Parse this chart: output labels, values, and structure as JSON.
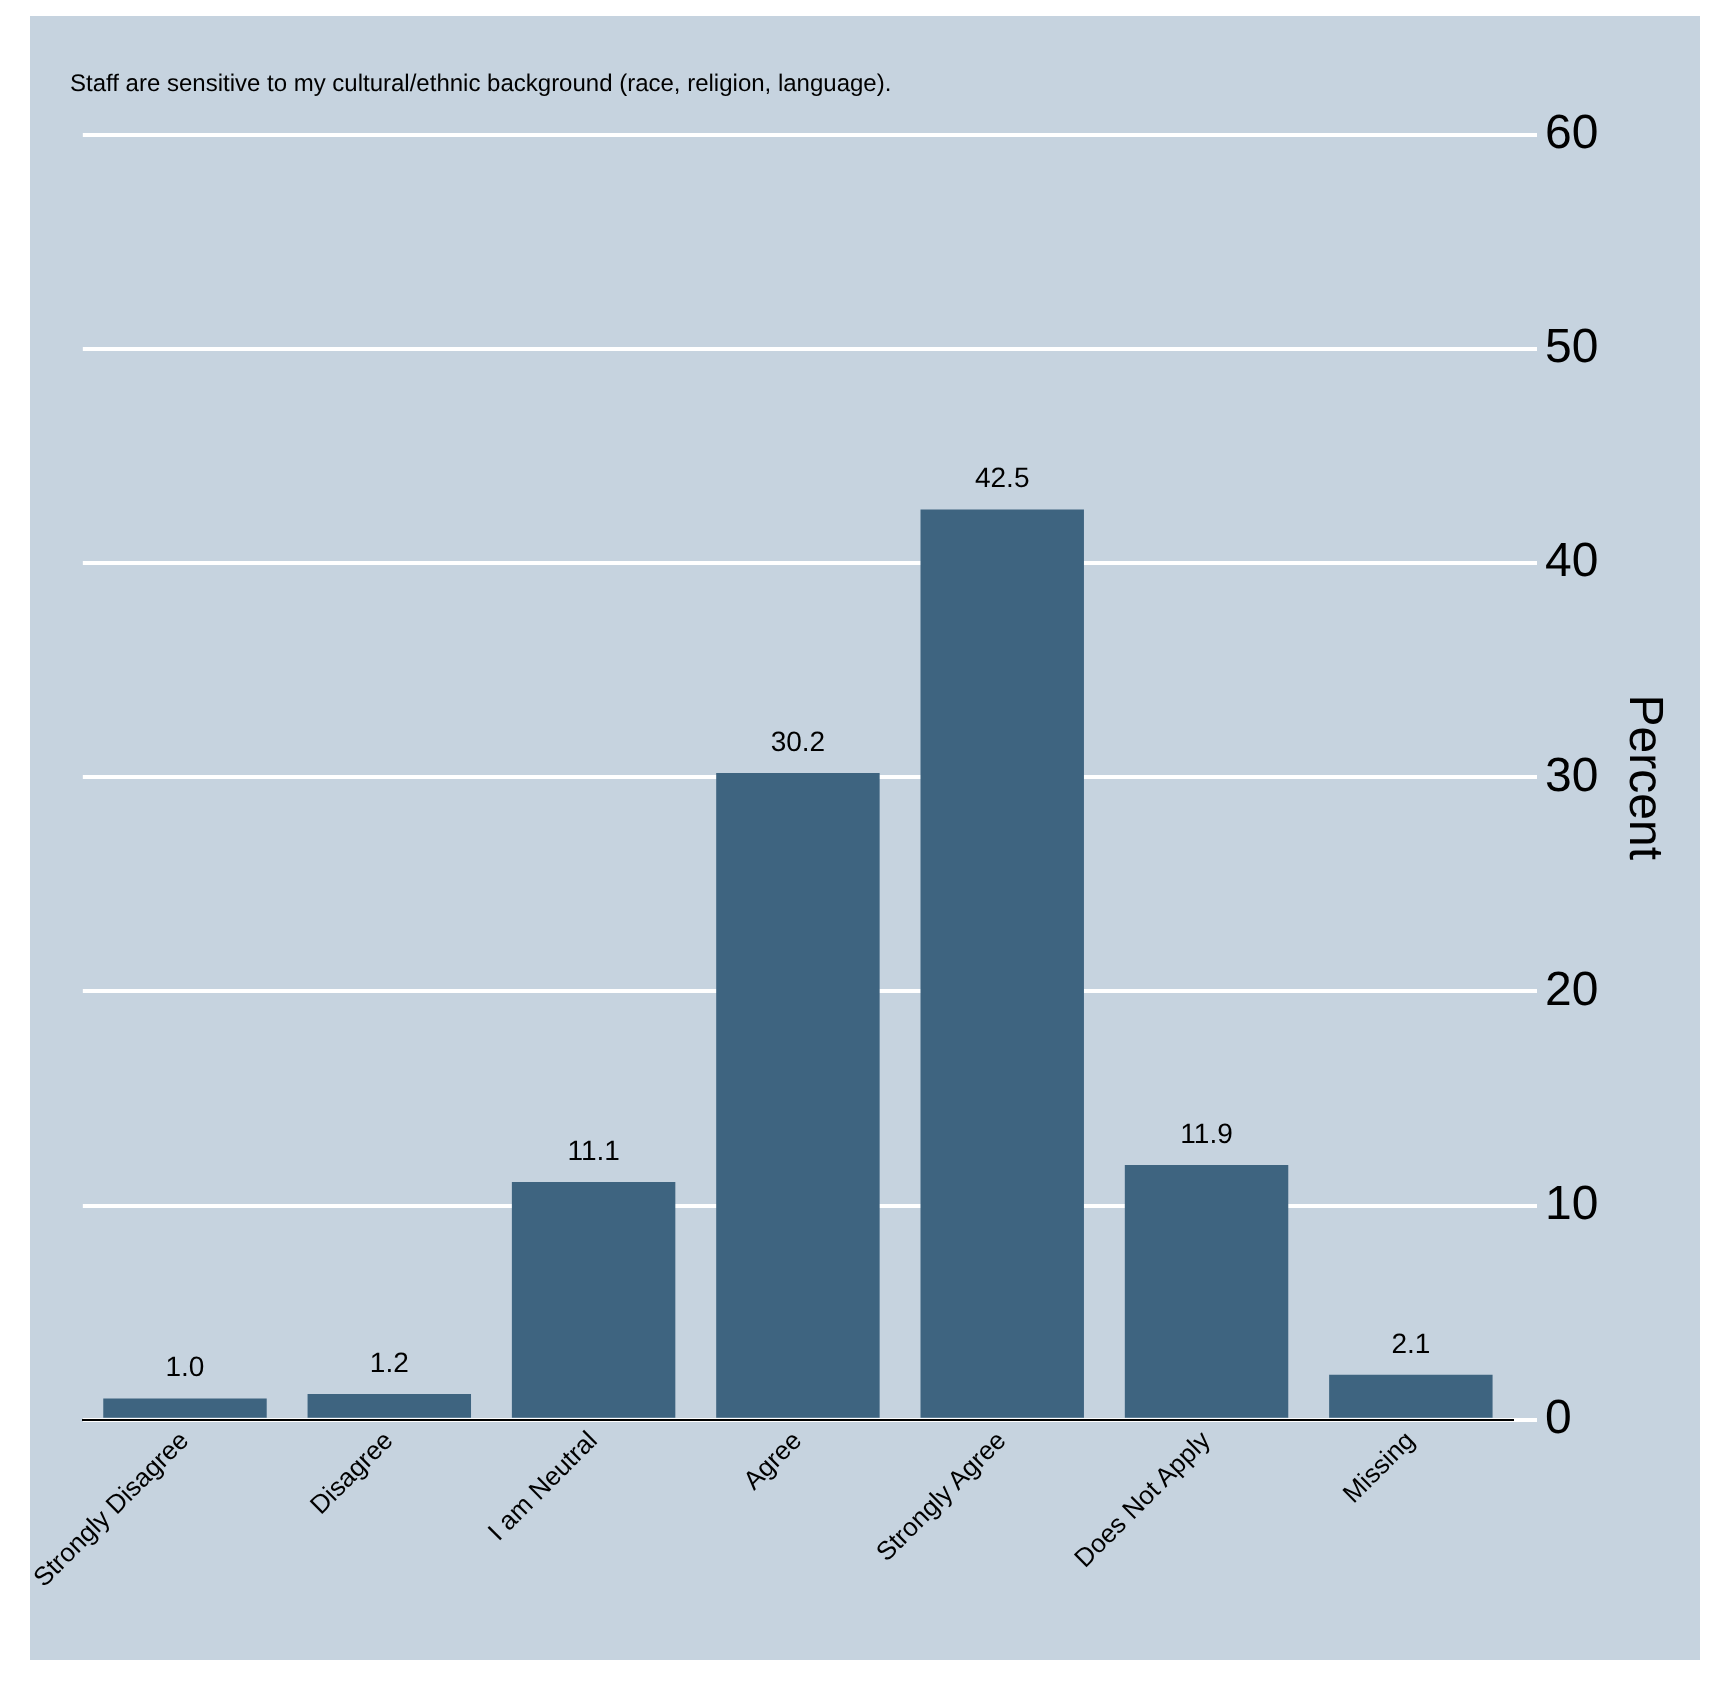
{
  "chart_data": {
    "type": "bar",
    "title": "Staff are sensitive to my cultural/ethnic background (race, religion, language).",
    "ylabel": "Percent",
    "categories": [
      "Strongly Disagree",
      "Disagree",
      "I am Neutral",
      "Agree",
      "Strongly Agree",
      "Does Not Apply",
      "Missing"
    ],
    "values": [
      1.0,
      1.2,
      11.1,
      30.2,
      42.5,
      11.9,
      2.1
    ],
    "color": "#3e6480",
    "value_labels": [
      "1.0",
      "1.2",
      "11.1",
      "30.2",
      "42.5",
      "11.9",
      "2.1"
    ],
    "ylim": [
      0,
      60
    ],
    "yticks": [
      0,
      10,
      20,
      30,
      40,
      50,
      60
    ],
    "grid": "y",
    "legend": false
  }
}
